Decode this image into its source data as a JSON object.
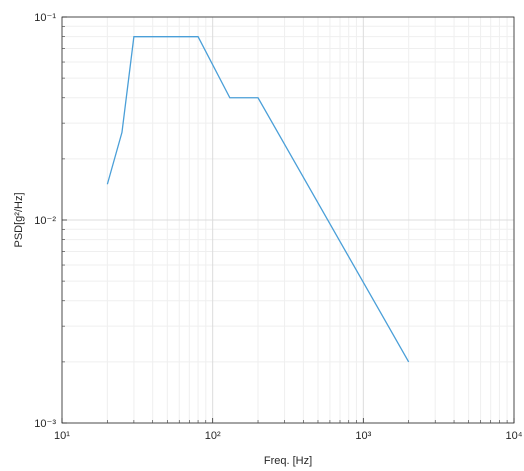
{
  "chart_data": {
    "type": "line",
    "xlabel": "Freq. [Hz]",
    "ylabel": "PSD[g²/Hz]",
    "xscale": "log",
    "yscale": "log",
    "grid": true,
    "minor_grid": true,
    "xlim": [
      10,
      10000
    ],
    "ylim": [
      0.001,
      0.1
    ],
    "xticks": [
      {
        "value": 10,
        "label": "10¹"
      },
      {
        "value": 100,
        "label": "10²"
      },
      {
        "value": 1000,
        "label": "10³"
      },
      {
        "value": 10000,
        "label": "10⁴"
      }
    ],
    "yticks": [
      {
        "value": 0.001,
        "label": "10⁻³"
      },
      {
        "value": 0.01,
        "label": "10⁻²"
      },
      {
        "value": 0.1,
        "label": "10⁻¹"
      }
    ],
    "xminorticks": [
      20,
      30,
      40,
      50,
      60,
      70,
      80,
      90,
      200,
      300,
      400,
      500,
      600,
      700,
      800,
      900,
      2000,
      3000,
      4000,
      5000,
      6000,
      7000,
      8000,
      9000
    ],
    "yminorticks": [
      0.002,
      0.003,
      0.004,
      0.005,
      0.006,
      0.007,
      0.008,
      0.009,
      0.02,
      0.03,
      0.04,
      0.05,
      0.06,
      0.07,
      0.08,
      0.09
    ],
    "x": [
      20,
      25,
      30,
      80,
      130,
      200,
      2000
    ],
    "series": [
      {
        "color": "#4a9fd8",
        "values": [
          0.015,
          0.027,
          0.08,
          0.08,
          0.04,
          0.04,
          0.002
        ]
      }
    ]
  }
}
